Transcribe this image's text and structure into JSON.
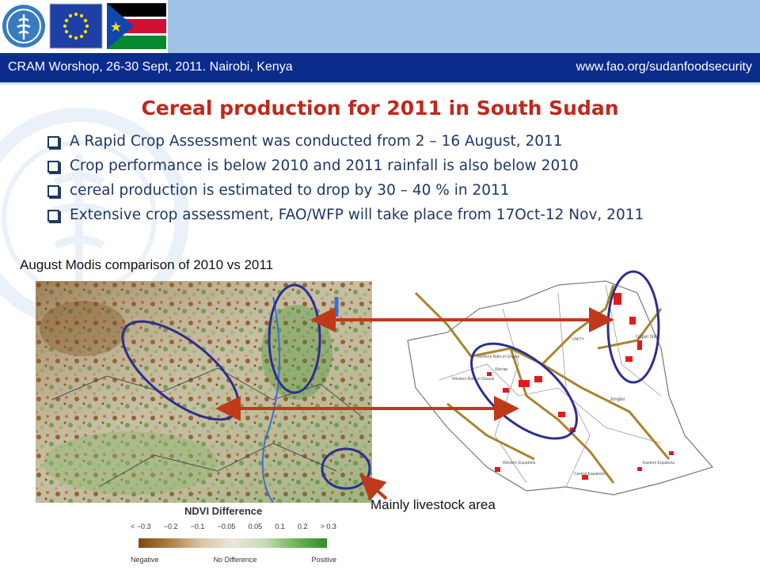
{
  "header": {
    "left_text": "CRAM Worshop, 26-30 Sept, 2011. Nairobi, Kenya",
    "right_text": "www.fao.org/sudanfoodsecurity",
    "logos": [
      "fao-logo",
      "eu-flag",
      "south-sudan-flag"
    ]
  },
  "slide": {
    "title": "Cereal production for 2011 in South Sudan",
    "bullets": [
      "A Rapid Crop Assessment was conducted from 2 – 16 August, 2011",
      "Crop performance is below 2010 and 2011 rainfall is also below 2010",
      "cereal production is estimated to drop by 30 – 40 % in 2011",
      "Extensive crop assessment, FAO/WFP will take place from 17Oct-12 Nov, 2011"
    ]
  },
  "figure": {
    "left_caption": "August Modis comparison of 2010 vs 2011",
    "annotation": "Mainly livestock area",
    "map_labels": {
      "upper_nile": "Upper Nile",
      "unity": "UNITY",
      "warrap": "Warrap",
      "northern_bahr": "Northern Bahr el Ghazal",
      "western_bahr": "Western Bahr el Ghazal",
      "jonglei": "Jonglei",
      "western_equatoria": "Western Equatoria",
      "central_equatoria": "Central Equatoria",
      "eastern_equatoria": "Eastern Equatoria"
    }
  },
  "legend": {
    "title": "NDVI Difference",
    "ticks": [
      "< −0.3",
      "−0.2",
      "−0.1",
      "−0.05",
      "0.05",
      "0.1",
      "0.2",
      "> 0.3"
    ],
    "labels": [
      "Negative",
      "No Difference",
      "Positive"
    ]
  },
  "colors": {
    "header_bar": "#0c2c8c",
    "title": "#c0281e",
    "bullet_text": "#1f3864",
    "ellipse": "#2b2f8f",
    "arrow": "#c0391b",
    "fao_blue": "#3a7bbf"
  }
}
